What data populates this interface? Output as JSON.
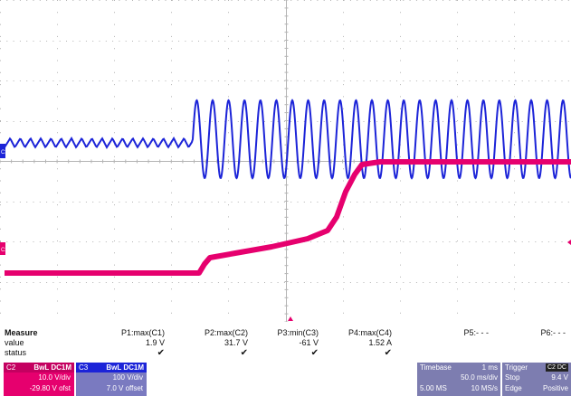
{
  "colors": {
    "c2_trace": "#e6006e",
    "c3_trace": "#1c24d8",
    "grid": "#b4b4b4",
    "panel": "#7d7db0"
  },
  "markers": {
    "c3_label": "C3",
    "c2_label": "C2"
  },
  "measure": {
    "header_label": "Measure",
    "row_value_label": "value",
    "row_status_label": "status",
    "columns": [
      {
        "name": "P1:max(C1)",
        "value": "1.9 V",
        "status": "✔"
      },
      {
        "name": "P2:max(C2)",
        "value": "31.7 V",
        "status": "✔"
      },
      {
        "name": "P3:min(C3)",
        "value": "-61 V",
        "status": "✔"
      },
      {
        "name": "P4:max(C4)",
        "value": "1.52 A",
        "status": "✔"
      },
      {
        "name": "P5:- - -",
        "value": "",
        "status": ""
      },
      {
        "name": "P6:- - -",
        "value": "",
        "status": ""
      }
    ]
  },
  "channels": {
    "c2": {
      "tag": "C2",
      "setting": "BwL DC1M",
      "vdiv": "10.0 V/div",
      "offset": "-29.80 V ofst"
    },
    "c3": {
      "tag": "C3",
      "setting": "BwL DC1M",
      "vdiv": "100 V/div",
      "offset": "7.0 V offset"
    }
  },
  "timebase": {
    "label": "Timebase",
    "delay": "1 ms",
    "scale": "50.0 ms/div",
    "samples": "5.00 MS",
    "rate": "10 MS/s"
  },
  "trigger": {
    "label": "Trigger",
    "badge": "C2 DC",
    "mode": "Stop",
    "level": "9.4 V",
    "type": "Edge",
    "slope": "Positive"
  }
}
